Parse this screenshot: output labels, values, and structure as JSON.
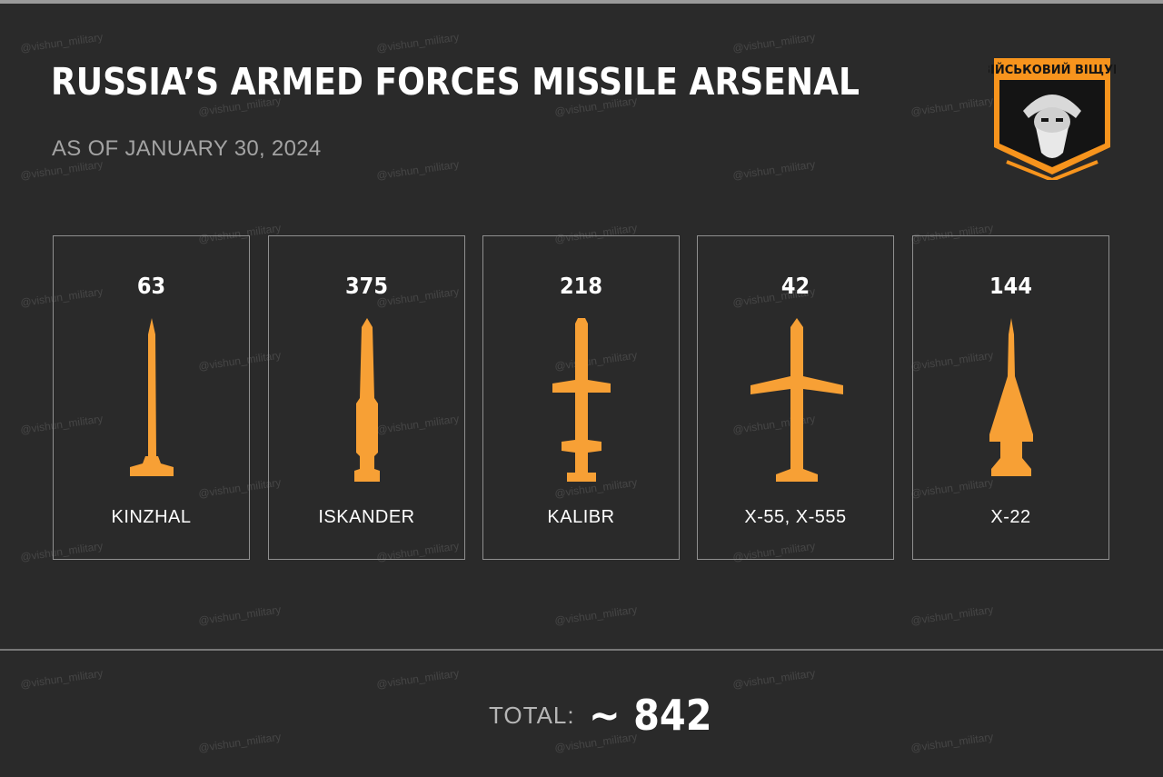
{
  "header": {
    "title": "RUSSIA’S ARMED FORCES MISSILE ARSENAL",
    "subtitle": "AS OF JANUARY 30, 2024"
  },
  "logo": {
    "text": "ВІЙСЬКОВИЙ ВІЩУН",
    "icon": "bearded-man-emblem",
    "accent_color": "#f7941d"
  },
  "watermark": "@vishun_military",
  "missiles": [
    {
      "count": "63",
      "name": "KINZHAL",
      "icon": "kinzhal-missile-icon"
    },
    {
      "count": "375",
      "name": "ISKANDER",
      "icon": "iskander-missile-icon"
    },
    {
      "count": "218",
      "name": "KALIBR",
      "icon": "kalibr-missile-icon"
    },
    {
      "count": "42",
      "name": "X-55, X-555",
      "icon": "x55-missile-icon"
    },
    {
      "count": "144",
      "name": "X-22",
      "icon": "x22-missile-icon"
    }
  ],
  "total": {
    "label": "TOTAL:",
    "value": "~ 842"
  },
  "colors": {
    "background": "#2a2a2a",
    "missile": "#f7a035",
    "border": "#8f8f8f",
    "subtitle": "#a3a3a3"
  }
}
